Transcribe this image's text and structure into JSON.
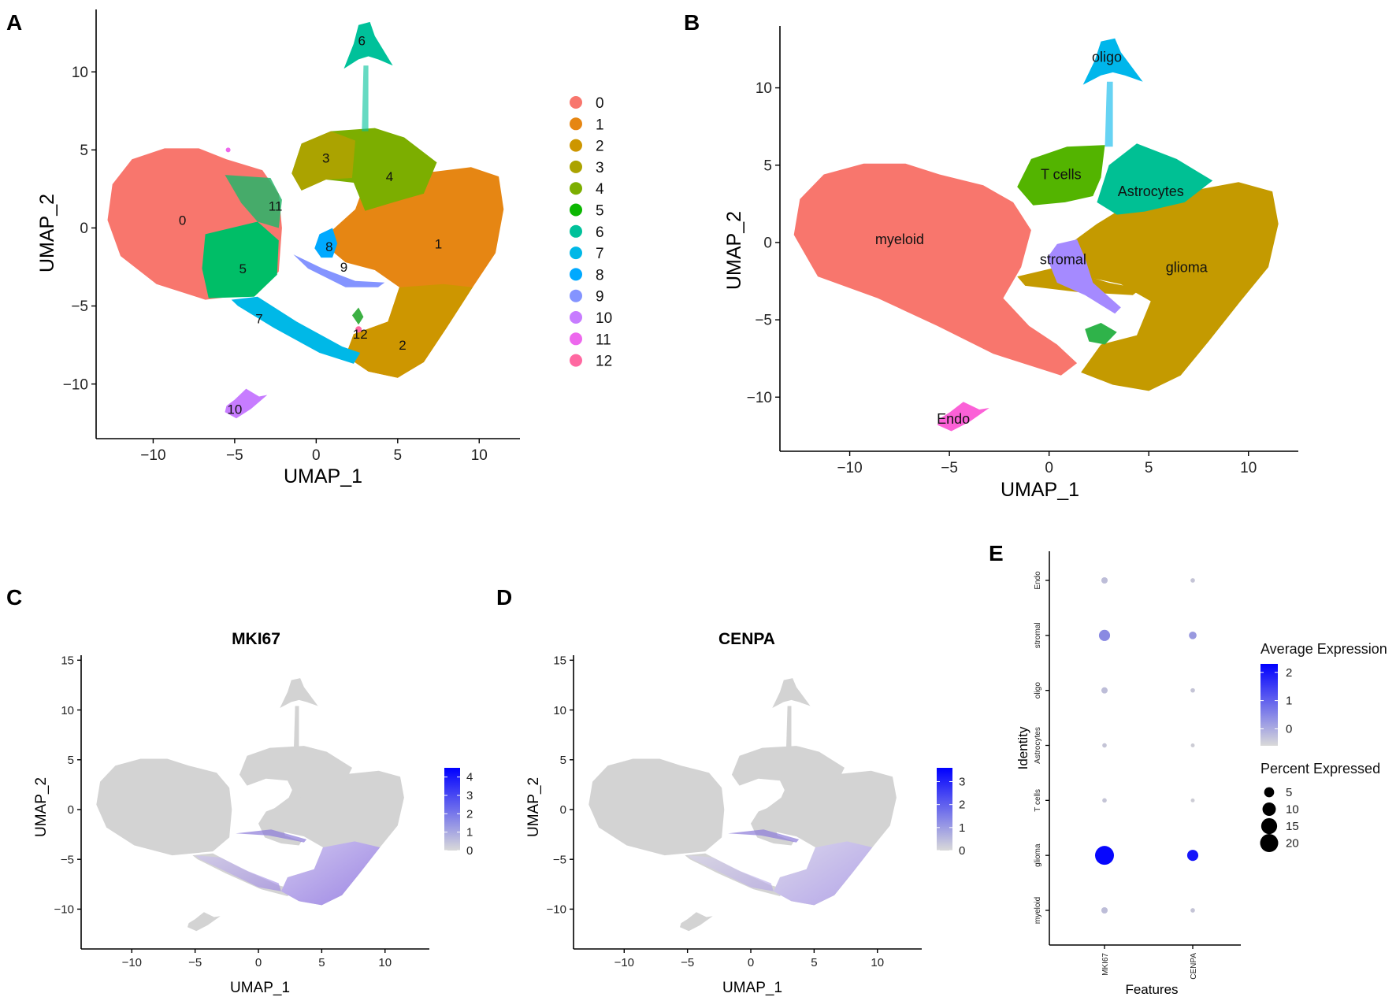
{
  "panels": {
    "A": {
      "letter": "A"
    },
    "B": {
      "letter": "B"
    },
    "C": {
      "letter": "C"
    },
    "D": {
      "letter": "D"
    },
    "E": {
      "letter": "E"
    }
  },
  "chart_data": [
    {
      "id": "A",
      "type": "scatter",
      "subtype": "umap_clusters",
      "title": "",
      "xlabel": "UMAP_1",
      "ylabel": "UMAP_2",
      "xlim": [
        -13.5,
        12.5
      ],
      "ylim": [
        -13.5,
        14
      ],
      "xticks": [
        -10,
        -5,
        0,
        5,
        10
      ],
      "yticks": [
        -10,
        -5,
        0,
        5,
        10
      ],
      "legend": {
        "position": "right",
        "entries": [
          {
            "label": "0",
            "color": "#F8766D"
          },
          {
            "label": "1",
            "color": "#E68613"
          },
          {
            "label": "2",
            "color": "#CD9600"
          },
          {
            "label": "3",
            "color": "#ABA300"
          },
          {
            "label": "4",
            "color": "#7CAE00"
          },
          {
            "label": "5",
            "color": "#0CB702"
          },
          {
            "label": "6",
            "color": "#00C19A"
          },
          {
            "label": "7",
            "color": "#00B8E7"
          },
          {
            "label": "8",
            "color": "#00A9FF"
          },
          {
            "label": "9",
            "color": "#8494FF"
          },
          {
            "label": "10",
            "color": "#C77CFF"
          },
          {
            "label": "11",
            "color": "#ED68ED"
          },
          {
            "label": "12",
            "color": "#FF68A1"
          }
        ]
      },
      "clusters": [
        {
          "label": "0",
          "color": "#F8766D",
          "center": [
            -8.2,
            0.5
          ]
        },
        {
          "label": "1",
          "color": "#E68613",
          "center": [
            7.5,
            -1
          ]
        },
        {
          "label": "2",
          "color": "#CD9600",
          "center": [
            5.3,
            -7.5
          ]
        },
        {
          "label": "3",
          "color": "#ABA300",
          "center": [
            0.6,
            4.5
          ]
        },
        {
          "label": "4",
          "color": "#7CAE00",
          "center": [
            4.5,
            3.3
          ]
        },
        {
          "label": "5",
          "color": "#00BE67",
          "center": [
            -4.5,
            -2.6
          ]
        },
        {
          "label": "6",
          "color": "#00C19A",
          "center": [
            2.8,
            12
          ]
        },
        {
          "label": "7",
          "color": "#00B8E7",
          "center": [
            -3.5,
            -5.8
          ]
        },
        {
          "label": "8",
          "color": "#00A9FF",
          "center": [
            0.8,
            -1.2
          ]
        },
        {
          "label": "9",
          "color": "#8494FF",
          "center": [
            1.7,
            -2.5
          ]
        },
        {
          "label": "10",
          "color": "#C77CFF",
          "center": [
            -5,
            -11.6
          ]
        },
        {
          "label": "11",
          "color": "#ED68ED",
          "center": [
            -2.5,
            1.4
          ]
        },
        {
          "label": "12",
          "color": "#FF68A1",
          "center": [
            2.7,
            -6.8
          ]
        }
      ]
    },
    {
      "id": "B",
      "type": "scatter",
      "subtype": "umap_celltypes",
      "title": "",
      "xlabel": "UMAP_1",
      "ylabel": "UMAP_2",
      "xlim": [
        -13.5,
        12.5
      ],
      "ylim": [
        -13.5,
        14
      ],
      "xticks": [
        -10,
        -5,
        0,
        5,
        10
      ],
      "yticks": [
        -10,
        -5,
        0,
        5,
        10
      ],
      "clusters": [
        {
          "label": "myeloid",
          "color": "#F8766D",
          "center": [
            -7.5,
            0.2
          ]
        },
        {
          "label": "glioma",
          "color": "#C49A00",
          "center": [
            6.9,
            -1.6
          ]
        },
        {
          "label": "T cells",
          "color": "#53B400",
          "center": [
            0.6,
            4.4
          ]
        },
        {
          "label": "Astrocytes",
          "color": "#00C094",
          "center": [
            5.1,
            3.3
          ]
        },
        {
          "label": "stromal",
          "color": "#A58AFF",
          "center": [
            0.7,
            -1.1
          ]
        },
        {
          "label": "oligo",
          "color": "#00B6EB",
          "center": [
            2.9,
            12
          ]
        },
        {
          "label": "Endo",
          "color": "#FB61D7",
          "center": [
            -4.8,
            -11.4
          ]
        }
      ]
    },
    {
      "id": "C",
      "type": "scatter",
      "subtype": "umap_feature",
      "title": "MKI67",
      "xlabel": "UMAP_1",
      "ylabel": "UMAP_2",
      "xlim": [
        -14,
        13.5
      ],
      "ylim": [
        -14,
        15.5
      ],
      "xticks": [
        -10,
        -5,
        0,
        5,
        10
      ],
      "yticks": [
        -10,
        -5,
        0,
        5,
        10,
        15
      ],
      "colorbar": {
        "min": 0,
        "max": 4.5,
        "ticks": [
          "4",
          "3",
          "2",
          "1",
          "0"
        ],
        "low_color": "#D9D9D9",
        "high_color": "#0000FF"
      }
    },
    {
      "id": "D",
      "type": "scatter",
      "subtype": "umap_feature",
      "title": "CENPA",
      "xlabel": "UMAP_1",
      "ylabel": "UMAP_2",
      "xlim": [
        -14,
        13.5
      ],
      "ylim": [
        -14,
        15.5
      ],
      "xticks": [
        -10,
        -5,
        0,
        5,
        10
      ],
      "yticks": [
        -10,
        -5,
        0,
        5,
        10,
        15
      ],
      "colorbar": {
        "min": 0,
        "max": 3.6,
        "ticks": [
          "3",
          "2",
          "1",
          "0"
        ],
        "low_color": "#D9D9D9",
        "high_color": "#0000FF"
      }
    },
    {
      "id": "E",
      "type": "dotplot",
      "title": "",
      "xlabel": "Features",
      "ylabel": "Identity",
      "features": [
        "MKI67",
        "CENPA"
      ],
      "identities": [
        "Endo",
        "stromal",
        "oligo",
        "Astrocytes",
        "T cells",
        "glioma",
        "myeloid"
      ],
      "avg_expression": [
        [
          -0.3,
          -0.4
        ],
        [
          0.4,
          0.2
        ],
        [
          -0.3,
          -0.4
        ],
        [
          -0.4,
          -0.5
        ],
        [
          -0.4,
          -0.5
        ],
        [
          2.2,
          2.0
        ],
        [
          -0.3,
          -0.4
        ]
      ],
      "pct_expressed": [
        [
          1.5,
          0.5
        ],
        [
          6.5,
          2.5
        ],
        [
          1.5,
          0.5
        ],
        [
          0.5,
          0.3
        ],
        [
          0.5,
          0.3
        ],
        [
          22,
          6.5
        ],
        [
          1.5,
          0.5
        ]
      ],
      "legend_avg": {
        "title": "Average Expression",
        "ticks": [
          "2",
          "1",
          "0"
        ],
        "range": [
          -0.6,
          2.3
        ]
      },
      "legend_pct": {
        "title": "Percent Expressed",
        "entries": [
          "5",
          "10",
          "15",
          "20"
        ],
        "values": [
          5,
          10,
          15,
          20
        ]
      }
    }
  ]
}
